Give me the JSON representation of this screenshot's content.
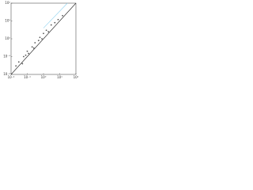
{
  "chart_data": {
    "type": "scatter",
    "log_x": true,
    "log_y": true,
    "xlim": [
      0.01,
      100
    ],
    "ylim": [
      0.01,
      100
    ],
    "xticks": [
      {
        "value": 0.01,
        "label": "10⁻²"
      },
      {
        "value": 0.1,
        "label": "10⁻¹"
      },
      {
        "value": 1,
        "label": "10⁰"
      },
      {
        "value": 10,
        "label": "10¹"
      },
      {
        "value": 100,
        "label": "10²"
      }
    ],
    "yticks": [
      {
        "value": 0.01,
        "label": "10⁻²"
      },
      {
        "value": 0.1,
        "label": "10⁻¹"
      },
      {
        "value": 1,
        "label": "10⁰"
      },
      {
        "value": 10,
        "label": "10¹"
      },
      {
        "value": 100,
        "label": "10²"
      }
    ],
    "series": [
      {
        "color": "#555555",
        "x": [
          0.02,
          0.03,
          0.05,
          0.06,
          0.08,
          0.1,
          0.12,
          0.2,
          0.25,
          0.3,
          0.5,
          0.6,
          0.8,
          1,
          1.5,
          2,
          3,
          5,
          8,
          15
        ],
        "values": [
          0.03,
          0.05,
          0.04,
          0.1,
          0.12,
          0.2,
          0.15,
          0.35,
          0.3,
          0.6,
          0.8,
          1.2,
          1,
          2,
          3,
          2.5,
          6,
          8,
          12,
          20
        ]
      }
    ],
    "lines": [
      {
        "color": "#222222",
        "x": [
          0.01,
          100
        ],
        "values": [
          0.01,
          100
        ]
      },
      {
        "color": "#8fd3f0",
        "x": [
          1,
          30
        ],
        "values": [
          4,
          100
        ]
      }
    ]
  }
}
